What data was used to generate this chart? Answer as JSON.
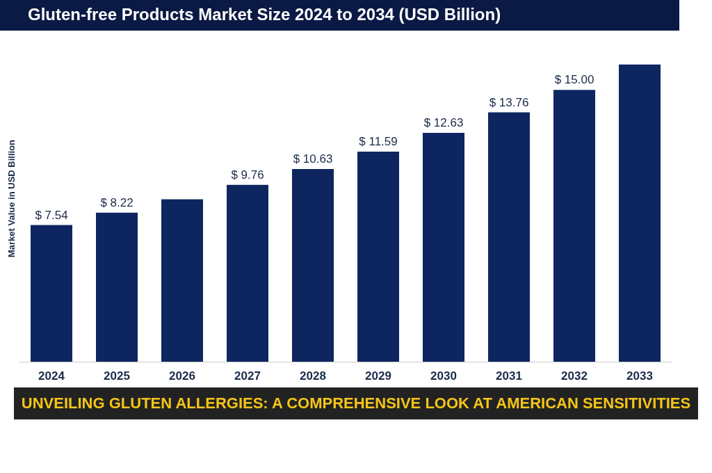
{
  "chart_data": {
    "type": "bar",
    "title": "Gluten-free Products Market Size 2024 to 2034 (USD Billion)",
    "ylabel": "Market Value in USD Billion",
    "categories": [
      "2024",
      "2025",
      "2026",
      "2027",
      "2028",
      "2029",
      "2030",
      "2031",
      "2032",
      "2033"
    ],
    "values": [
      7.54,
      8.22,
      8.96,
      9.76,
      10.63,
      11.59,
      12.63,
      13.76,
      15.0,
      16.4
    ],
    "value_labels": [
      "$ 7.54",
      "$ 8.22",
      null,
      "$ 9.76",
      "$ 10.63",
      "$ 11.59",
      "$ 12.63",
      "$ 13.76",
      "$ 15.00",
      null
    ],
    "color": "#0d2660",
    "tick_labels": "x",
    "annotations": [
      "UNVEILING GLUTEN ALLERGIES: A COMPREHENSIVE LOOK AT AMERICAN SENSITIVITIES"
    ]
  }
}
